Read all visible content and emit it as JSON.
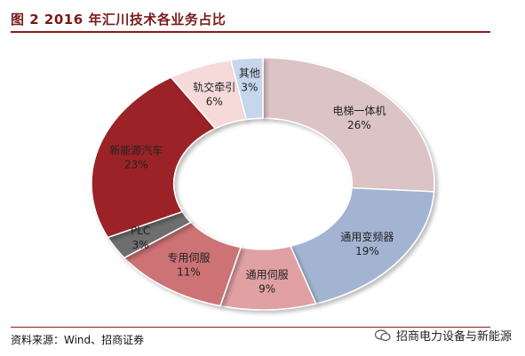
{
  "figure": {
    "title": "图 2 2016 年汇川技术各业务占比"
  },
  "source_note": "资料来源：Wind、招商证券",
  "watermark": "招商电力设备与新能源",
  "chart_data": {
    "type": "pie",
    "donut": true,
    "title": "图 2 2016 年汇川技术各业务占比",
    "categories": [
      "电梯一体机",
      "通用变频器",
      "通用伺服",
      "专用伺服",
      "PLC",
      "新能源汽车",
      "轨交牵引",
      "其他"
    ],
    "values": [
      26,
      19,
      9,
      11,
      3,
      23,
      6,
      3
    ],
    "labels": [
      "26%",
      "19%",
      "9%",
      "11%",
      "3%",
      "23%",
      "6%",
      "3%"
    ],
    "colors": [
      "#dcc3c5",
      "#a2b4d1",
      "#e0a0a4",
      "#cd7274",
      "#6e6e6e",
      "#9b2127",
      "#f6dada",
      "#c7d6ec"
    ]
  }
}
